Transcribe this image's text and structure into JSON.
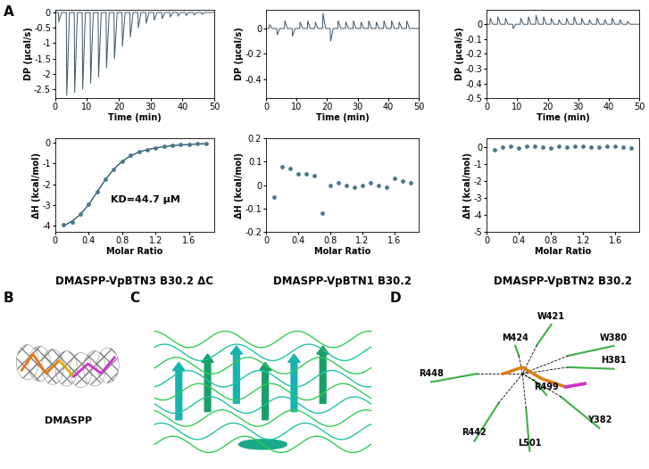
{
  "panel_labels": [
    "A",
    "B",
    "C",
    "D"
  ],
  "chart_data": [
    {
      "type": "line",
      "xlabel": "Time (min)",
      "ylabel": "DP (μcal/s)",
      "color": "#3d5567",
      "x": [
        0,
        1.0,
        1.15,
        2.0,
        3.5,
        3.65,
        4.5,
        6.0,
        6.15,
        7.0,
        8.5,
        8.65,
        9.5,
        11.0,
        11.15,
        12.0,
        13.5,
        13.65,
        14.5,
        16.0,
        16.15,
        17.0,
        18.5,
        18.65,
        19.5,
        21.0,
        21.15,
        22.0,
        23.5,
        23.65,
        24.5,
        26.0,
        26.15,
        27.0,
        28.5,
        28.65,
        29.5,
        31.0,
        31.15,
        32.0,
        33.5,
        33.65,
        34.5,
        36.0,
        36.15,
        37.0,
        38.5,
        38.65,
        39.5,
        41.0,
        41.15,
        42.0,
        43.5,
        43.65,
        44.5,
        46.0,
        46.15,
        47.0,
        50.0
      ],
      "values": [
        0,
        0,
        -0.3,
        0,
        0,
        -2.7,
        0,
        0,
        -2.6,
        0,
        0,
        -2.5,
        0,
        0,
        -2.3,
        0,
        0,
        -2.1,
        0,
        0,
        -1.8,
        0,
        0,
        -1.5,
        0,
        0,
        -1.1,
        0,
        0,
        -0.8,
        0,
        0,
        -0.5,
        0,
        0,
        -0.35,
        0,
        0,
        -0.25,
        0,
        0,
        -0.2,
        0,
        0,
        -0.15,
        0,
        0,
        -0.12,
        0,
        0,
        -0.1,
        0,
        0,
        -0.08,
        0,
        0,
        -0.06,
        0,
        0
      ],
      "xlim": [
        0,
        50
      ],
      "xticks": [
        0,
        10,
        20,
        30,
        40,
        50
      ],
      "ylim": [
        -2.8,
        0.1
      ],
      "yticks": [
        -2.5,
        -2,
        -1.5,
        -1,
        -0.5,
        0
      ]
    },
    {
      "type": "line",
      "xlabel": "Time (min)",
      "ylabel": "DP (μcal/s)",
      "color": "#3d5567",
      "x": [
        0,
        1.0,
        1.15,
        2.0,
        3.5,
        3.65,
        4.5,
        6.0,
        6.15,
        7.0,
        8.5,
        8.65,
        9.5,
        11.0,
        11.15,
        12.0,
        13.5,
        13.65,
        14.5,
        16.0,
        16.15,
        17.0,
        18.5,
        18.65,
        19.5,
        21.0,
        21.15,
        22.0,
        23.5,
        23.65,
        24.5,
        26.0,
        26.15,
        27.0,
        28.5,
        28.65,
        29.5,
        31.0,
        31.15,
        32.0,
        33.5,
        33.65,
        34.5,
        36.0,
        36.15,
        37.0,
        38.5,
        38.65,
        39.5,
        41.0,
        41.15,
        42.0,
        43.5,
        43.65,
        44.5,
        46.0,
        46.15,
        47.0,
        50.0
      ],
      "values": [
        0,
        0,
        0.03,
        0,
        0,
        -0.05,
        0,
        0,
        0.06,
        0,
        0,
        -0.06,
        0,
        0,
        0.05,
        0,
        0,
        0.06,
        0,
        0,
        0.05,
        0,
        0,
        0.12,
        0,
        0,
        -0.1,
        0,
        0,
        0.06,
        0,
        0,
        0.05,
        0,
        0,
        0.06,
        0,
        0,
        0.05,
        0,
        0,
        0.06,
        0,
        0,
        0.05,
        0,
        0,
        0.06,
        0,
        0,
        0.06,
        0,
        0,
        0.05,
        0,
        0,
        0.06,
        0,
        0
      ],
      "xlim": [
        0,
        50
      ],
      "xticks": [
        0,
        10,
        20,
        30,
        40,
        50
      ],
      "ylim": [
        -0.55,
        0.15
      ],
      "yticks": [
        -0.4,
        -0.2,
        0
      ]
    },
    {
      "type": "line",
      "xlabel": "Time (min)",
      "ylabel": "DP (μcal/s)",
      "color": "#3d5567",
      "x": [
        0,
        1.0,
        1.15,
        2.0,
        3.5,
        3.65,
        4.5,
        6.0,
        6.15,
        7.0,
        8.5,
        8.65,
        9.5,
        11.0,
        11.15,
        12.0,
        13.5,
        13.65,
        14.5,
        16.0,
        16.15,
        17.0,
        18.5,
        18.65,
        19.5,
        21.0,
        21.15,
        22.0,
        23.5,
        23.65,
        24.5,
        26.0,
        26.15,
        27.0,
        28.5,
        28.65,
        29.5,
        31.0,
        31.15,
        32.0,
        33.5,
        33.65,
        34.5,
        36.0,
        36.15,
        37.0,
        38.5,
        38.65,
        39.5,
        41.0,
        41.15,
        42.0,
        43.5,
        43.65,
        44.5,
        46.0,
        46.15,
        47.0,
        50.0
      ],
      "values": [
        0,
        0,
        0.04,
        0,
        0,
        0.05,
        0,
        0,
        0.04,
        0,
        0,
        -0.03,
        0,
        0,
        0.04,
        0,
        0,
        0.05,
        0,
        0,
        0.06,
        0,
        0,
        0.05,
        0,
        0,
        0.04,
        0,
        0,
        0.03,
        0,
        0,
        0.04,
        0,
        0,
        0.05,
        0,
        0,
        0.04,
        0,
        0,
        0.03,
        0,
        0,
        0.04,
        0,
        0,
        0.03,
        0,
        0,
        0.04,
        0,
        0,
        0.03,
        0,
        0,
        0.02,
        0,
        0
      ],
      "xlim": [
        0,
        50
      ],
      "xticks": [
        0,
        10,
        20,
        30,
        40,
        50
      ],
      "ylim": [
        -0.5,
        0.1
      ],
      "yticks": [
        -0.5,
        -0.4,
        -0.3,
        -0.2,
        -0.1,
        0
      ]
    },
    {
      "type": "scatter",
      "title": "DMASPP-VpBTN3 B30.2 ΔC",
      "xlabel": "Molar Ratio",
      "ylabel": "ΔH (kcal/mol)",
      "annotations": [
        "KD=44.7 μM"
      ],
      "x": [
        0.1,
        0.2,
        0.3,
        0.4,
        0.5,
        0.6,
        0.7,
        0.8,
        0.9,
        1.0,
        1.1,
        1.2,
        1.3,
        1.4,
        1.5,
        1.6,
        1.7,
        1.8
      ],
      "series": [
        {
          "type": "line",
          "color": "#2c5a6a",
          "values": [
            -4.0,
            -3.78,
            -3.45,
            -2.98,
            -2.38,
            -1.78,
            -1.28,
            -0.9,
            -0.64,
            -0.46,
            -0.34,
            -0.26,
            -0.2,
            -0.15,
            -0.12,
            -0.09,
            -0.07,
            -0.06
          ]
        },
        {
          "type": "scatter",
          "color": "#4a7a8a",
          "values": [
            -3.95,
            -3.8,
            -3.45,
            -2.95,
            -2.35,
            -1.75,
            -1.3,
            -0.9,
            -0.62,
            -0.45,
            -0.33,
            -0.25,
            -0.18,
            -0.13,
            -0.1,
            -0.08,
            -0.04,
            -0.03
          ]
        }
      ],
      "xlim": [
        0,
        1.9
      ],
      "xticks": [
        0,
        0.4,
        0.8,
        1.2,
        1.6
      ],
      "ylim": [
        -4.3,
        0.2
      ],
      "yticks": [
        -4,
        -3,
        -2,
        -1,
        0
      ]
    },
    {
      "type": "scatter",
      "title": "DMASPP-VpBTN1 B30.2",
      "xlabel": "Molar Ratio",
      "ylabel": "ΔH (kcal/mol)",
      "x": [
        0.1,
        0.2,
        0.3,
        0.4,
        0.5,
        0.6,
        0.7,
        0.8,
        0.9,
        1.0,
        1.1,
        1.2,
        1.3,
        1.4,
        1.5,
        1.6,
        1.7,
        1.8
      ],
      "series": [
        {
          "type": "scatter",
          "color": "#4a7a8a",
          "values": [
            -0.05,
            0.08,
            0.07,
            0.05,
            0.05,
            0.04,
            -0.12,
            0.0,
            0.01,
            0.0,
            -0.01,
            0.0,
            0.01,
            0.0,
            -0.01,
            0.03,
            0.02,
            0.01
          ]
        }
      ],
      "xlim": [
        0,
        1.9
      ],
      "xticks": [
        0,
        0.4,
        0.8,
        1.2,
        1.6
      ],
      "ylim": [
        -0.2,
        0.2
      ],
      "yticks": [
        -0.2,
        -0.1,
        0,
        0.1,
        0.2
      ]
    },
    {
      "type": "scatter",
      "title": "DMASPP-VpBTN2 B30.2",
      "xlabel": "Molar Ratio",
      "ylabel": "ΔH (kcal/mol)",
      "x": [
        0.1,
        0.2,
        0.3,
        0.4,
        0.5,
        0.6,
        0.7,
        0.8,
        0.9,
        1.0,
        1.1,
        1.2,
        1.3,
        1.4,
        1.5,
        1.6,
        1.7,
        1.8
      ],
      "series": [
        {
          "type": "scatter",
          "color": "#4a7a8a",
          "values": [
            -0.15,
            0.0,
            0.02,
            -0.05,
            0.05,
            0.03,
            0.0,
            -0.05,
            0.02,
            0.0,
            0.03,
            0.06,
            -0.03,
            0.0,
            0.05,
            0.02,
            -0.02,
            -0.05
          ]
        }
      ],
      "xlim": [
        0,
        1.9
      ],
      "xticks": [
        0,
        0.4,
        0.8,
        1.2,
        1.6
      ],
      "ylim": [
        -5,
        0.5
      ],
      "yticks": [
        -5,
        -4,
        -3,
        -2,
        -1,
        0
      ]
    }
  ],
  "panel_B": {
    "label": "DMASPP"
  },
  "panel_D": {
    "residues": [
      "W421",
      "M424",
      "W380",
      "H381",
      "R448",
      "R499",
      "R442",
      "L501",
      "Y382"
    ]
  }
}
